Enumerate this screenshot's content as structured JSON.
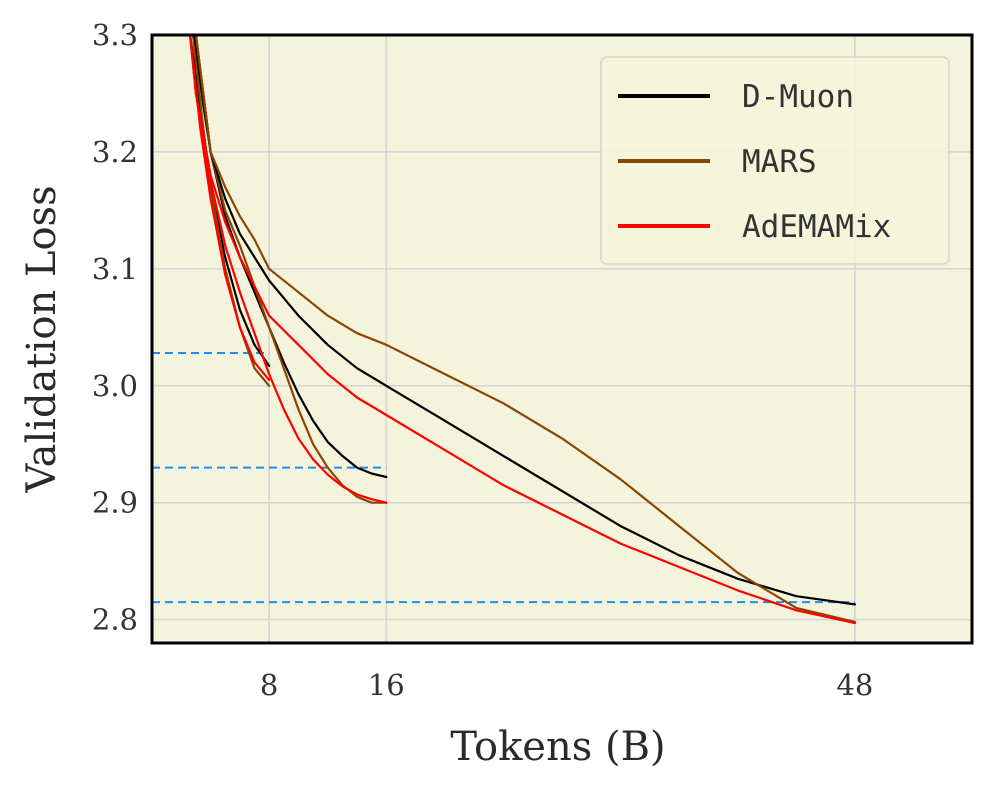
{
  "chart_data": {
    "type": "line",
    "title": "",
    "xlabel": "Tokens (B)",
    "ylabel": "Validation Loss",
    "xlim": [
      0,
      56
    ],
    "ylim": [
      2.78,
      3.3
    ],
    "xticks": [
      8,
      16,
      48
    ],
    "yticks": [
      2.8,
      2.9,
      3.0,
      3.1,
      3.2,
      3.3
    ],
    "xtick_labels": [
      "8",
      "16",
      "48"
    ],
    "ytick_labels": [
      "2.8",
      "2.9",
      "3.0",
      "3.1",
      "3.2",
      "3.3"
    ],
    "grid": true,
    "legend_position": "top-right",
    "background": "#f4f4dc",
    "legend": [
      {
        "label": "D-Muon",
        "color": "#000000"
      },
      {
        "label": "MARS",
        "color": "#8b4500"
      },
      {
        "label": "AdEMAMix",
        "color": "#ff0000"
      }
    ],
    "series": [
      {
        "name": "D-Muon",
        "color": "#000000",
        "run": "8B",
        "x": [
          2.6,
          3.5,
          4,
          5,
          6,
          7,
          8
        ],
        "y": [
          3.3,
          3.22,
          3.17,
          3.11,
          3.065,
          3.035,
          3.017
        ]
      },
      {
        "name": "MARS",
        "color": "#8b4500",
        "run": "8B",
        "x": [
          2.8,
          3.5,
          4,
          5,
          6,
          7,
          8
        ],
        "y": [
          3.3,
          3.22,
          3.17,
          3.1,
          3.05,
          3.015,
          3.0
        ]
      },
      {
        "name": "AdEMAMix",
        "color": "#ff0000",
        "run": "8B",
        "x": [
          2.6,
          3.3,
          4,
          5,
          6,
          7,
          8
        ],
        "y": [
          3.3,
          3.22,
          3.16,
          3.095,
          3.05,
          3.02,
          3.005
        ]
      },
      {
        "name": "D-Muon",
        "color": "#000000",
        "run": "16B",
        "x": [
          2.9,
          3.5,
          4,
          5,
          6,
          7,
          8,
          9,
          10,
          11,
          12,
          13,
          14,
          15,
          16
        ],
        "y": [
          3.3,
          3.24,
          3.2,
          3.145,
          3.11,
          3.08,
          3.05,
          3.02,
          2.993,
          2.97,
          2.952,
          2.94,
          2.93,
          2.925,
          2.922
        ]
      },
      {
        "name": "MARS",
        "color": "#8b4500",
        "run": "16B",
        "x": [
          3,
          4,
          5,
          6,
          7,
          8,
          9,
          10,
          11,
          12,
          13,
          14,
          15,
          16
        ],
        "y": [
          3.3,
          3.2,
          3.15,
          3.12,
          3.085,
          3.05,
          3.015,
          2.98,
          2.95,
          2.93,
          2.915,
          2.905,
          2.9,
          2.9
        ]
      },
      {
        "name": "AdEMAMix",
        "color": "#ff0000",
        "run": "16B",
        "x": [
          2.6,
          3,
          4,
          5,
          6,
          7,
          8,
          9,
          10,
          11,
          12,
          13,
          14,
          15,
          16
        ],
        "y": [
          3.3,
          3.25,
          3.175,
          3.12,
          3.08,
          3.045,
          3.01,
          2.98,
          2.955,
          2.937,
          2.924,
          2.914,
          2.907,
          2.903,
          2.9
        ]
      },
      {
        "name": "D-Muon",
        "color": "#000000",
        "run": "48B",
        "x": [
          3,
          4,
          5,
          6,
          7,
          8,
          10,
          12,
          14,
          16,
          20,
          24,
          28,
          32,
          36,
          40,
          44,
          48
        ],
        "y": [
          3.3,
          3.2,
          3.16,
          3.13,
          3.11,
          3.09,
          3.06,
          3.035,
          3.015,
          3.0,
          2.97,
          2.94,
          2.91,
          2.88,
          2.855,
          2.835,
          2.82,
          2.813
        ]
      },
      {
        "name": "MARS",
        "color": "#8b4500",
        "run": "48B",
        "x": [
          3,
          4,
          5,
          6,
          7,
          8,
          10,
          12,
          14,
          16,
          20,
          24,
          28,
          32,
          36,
          40,
          44,
          48
        ],
        "y": [
          3.3,
          3.2,
          3.17,
          3.145,
          3.125,
          3.1,
          3.08,
          3.06,
          3.045,
          3.035,
          3.01,
          2.985,
          2.955,
          2.92,
          2.88,
          2.84,
          2.81,
          2.798
        ]
      },
      {
        "name": "AdEMAMix",
        "color": "#ff0000",
        "run": "48B",
        "x": [
          2.6,
          3,
          4,
          5,
          6,
          7,
          8,
          10,
          12,
          14,
          16,
          20,
          24,
          28,
          32,
          36,
          40,
          44,
          48
        ],
        "y": [
          3.3,
          3.25,
          3.18,
          3.14,
          3.11,
          3.085,
          3.06,
          3.035,
          3.01,
          2.99,
          2.975,
          2.945,
          2.915,
          2.89,
          2.865,
          2.845,
          2.825,
          2.808,
          2.797
        ]
      }
    ],
    "reference_lines": [
      {
        "y": 3.028,
        "x_end": 8,
        "color": "#1e8ef0",
        "style": "dashed"
      },
      {
        "y": 2.93,
        "x_end": 16,
        "color": "#1e8ef0",
        "style": "dashed"
      },
      {
        "y": 2.815,
        "x_end": 48,
        "color": "#1e8ef0",
        "style": "dashed"
      }
    ]
  }
}
